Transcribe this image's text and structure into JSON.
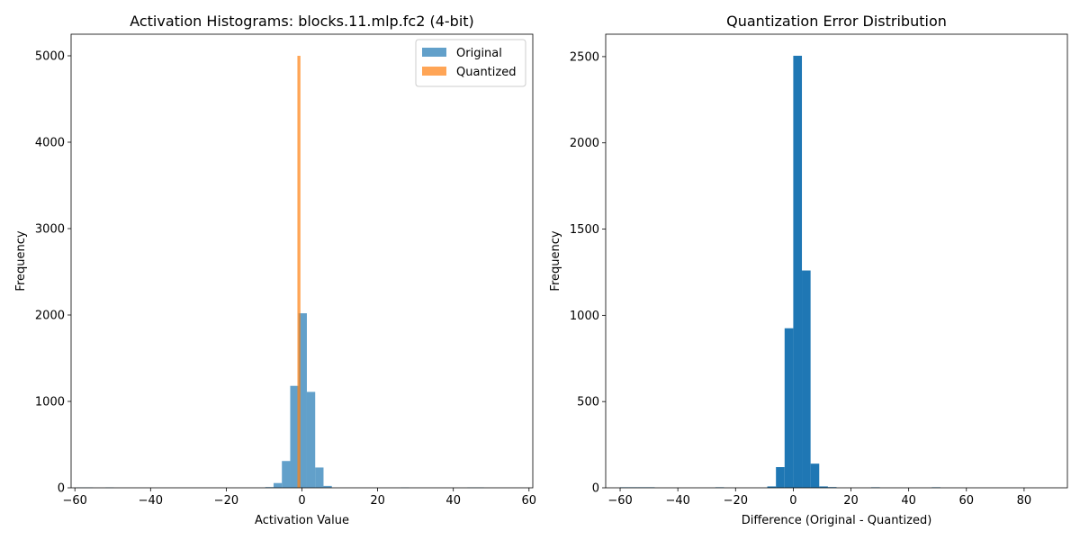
{
  "chart_data": [
    {
      "type": "bar",
      "title": "Activation Histograms: blocks.11.mlp.fc2 (4-bit)",
      "xlabel": "Activation Value",
      "ylabel": "Frequency",
      "xlim": [
        -61,
        61
      ],
      "ylim": [
        0,
        5250
      ],
      "xticks": [
        -60,
        -40,
        -20,
        0,
        20,
        40,
        60
      ],
      "yticks": [
        0,
        1000,
        2000,
        3000,
        4000,
        5000
      ],
      "legend": {
        "position": "top-right",
        "entries": [
          {
            "label": "Original",
            "color": "#1f77b4"
          },
          {
            "label": "Quantized",
            "color": "#ff7f0e"
          }
        ]
      },
      "series": [
        {
          "name": "Original",
          "color": "#1f77b4",
          "opacity": 0.7,
          "bin_width": 2.2,
          "bins": [
            {
              "x": -58.5,
              "y": 4
            },
            {
              "x": -56.3,
              "y": 4
            },
            {
              "x": -50.8,
              "y": 4
            },
            {
              "x": -8.6,
              "y": 8
            },
            {
              "x": -6.4,
              "y": 55
            },
            {
              "x": -4.2,
              "y": 310
            },
            {
              "x": -2.0,
              "y": 1180
            },
            {
              "x": 0.2,
              "y": 2020
            },
            {
              "x": 2.4,
              "y": 1110
            },
            {
              "x": 4.6,
              "y": 235
            },
            {
              "x": 6.8,
              "y": 22
            },
            {
              "x": 27.2,
              "y": 4
            },
            {
              "x": 44.8,
              "y": 4
            },
            {
              "x": 47.0,
              "y": 4
            }
          ]
        },
        {
          "name": "Quantized",
          "color": "#ff7f0e",
          "opacity": 0.7,
          "bin_width": 0.8,
          "bins": [
            {
              "x": -0.8,
              "y": 5000
            }
          ]
        }
      ]
    },
    {
      "type": "bar",
      "title": "Quantization Error Distribution",
      "xlabel": "Difference (Original - Quantized)",
      "ylabel": "Frequency",
      "xlim": [
        -65,
        95
      ],
      "ylim": [
        0,
        2630
      ],
      "xticks": [
        -60,
        -40,
        -20,
        0,
        20,
        40,
        60,
        80
      ],
      "yticks": [
        0,
        500,
        1000,
        1500,
        2000,
        2500
      ],
      "series": [
        {
          "name": "",
          "color": "#1f77b4",
          "opacity": 1.0,
          "bin_width": 3.0,
          "bins": [
            {
              "x": -58.5,
              "y": 3
            },
            {
              "x": -55.5,
              "y": 3
            },
            {
              "x": -52.5,
              "y": 3
            },
            {
              "x": -49.5,
              "y": 3
            },
            {
              "x": -25.5,
              "y": 3
            },
            {
              "x": -7.5,
              "y": 8
            },
            {
              "x": -4.5,
              "y": 120
            },
            {
              "x": -1.5,
              "y": 925
            },
            {
              "x": 1.5,
              "y": 2505
            },
            {
              "x": 4.5,
              "y": 1260
            },
            {
              "x": 7.5,
              "y": 140
            },
            {
              "x": 10.5,
              "y": 8
            },
            {
              "x": 13.5,
              "y": 4
            },
            {
              "x": 28.5,
              "y": 3
            },
            {
              "x": 49.5,
              "y": 3
            }
          ]
        }
      ]
    }
  ]
}
